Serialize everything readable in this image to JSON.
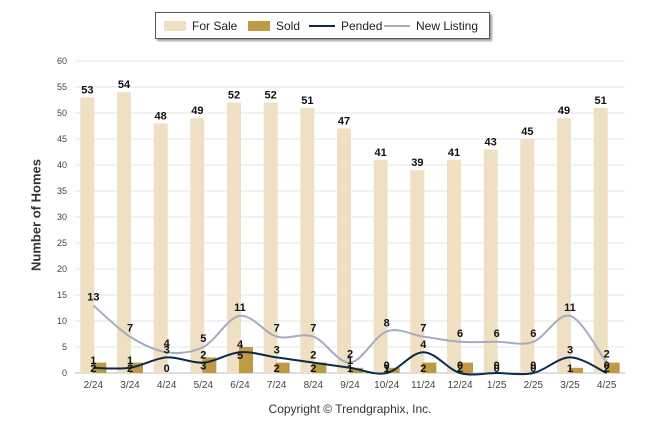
{
  "chart_data": {
    "type": "bar",
    "categories": [
      "2/24",
      "3/24",
      "4/24",
      "5/24",
      "6/24",
      "7/24",
      "8/24",
      "9/24",
      "10/24",
      "11/24",
      "12/24",
      "1/25",
      "2/25",
      "3/25",
      "4/25"
    ],
    "series": [
      {
        "name": "For Sale",
        "kind": "bar",
        "color": "#efdfc3",
        "values": [
          53,
          54,
          48,
          49,
          52,
          52,
          51,
          47,
          41,
          39,
          41,
          43,
          45,
          49,
          51
        ]
      },
      {
        "name": "Sold",
        "kind": "bar",
        "color": "#bf9a44",
        "values": [
          2,
          2,
          0,
          3,
          5,
          2,
          2,
          1,
          1,
          2,
          2,
          0,
          0,
          1,
          2
        ]
      },
      {
        "name": "Pended",
        "kind": "line",
        "color": "#0b2a4a",
        "values": [
          1,
          1,
          3,
          2,
          4,
          3,
          2,
          1,
          0,
          4,
          0,
          0,
          0,
          3,
          0
        ]
      },
      {
        "name": "New Listing",
        "kind": "line",
        "color": "#a3acc0",
        "values": [
          13,
          7,
          4,
          5,
          11,
          7,
          7,
          2,
          8,
          7,
          6,
          6,
          6,
          11,
          2
        ]
      }
    ],
    "ylabel": "Number of Homes",
    "ylim": [
      0,
      60
    ],
    "yticks": [
      0,
      5,
      10,
      15,
      20,
      25,
      30,
      35,
      40,
      45,
      50,
      55,
      60
    ],
    "grid": true,
    "legend_placement": "top-center"
  },
  "footer": {
    "copyright": "Copyright © Trendgraphix, Inc."
  }
}
